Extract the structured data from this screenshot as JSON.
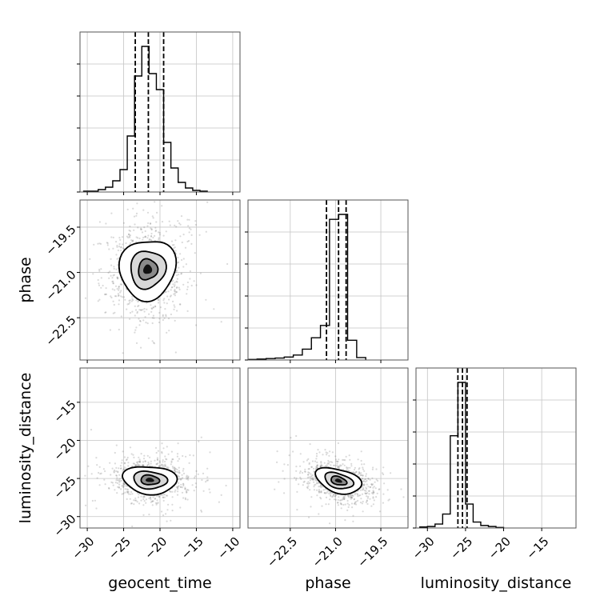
{
  "chart_data": {
    "type": "corner",
    "parameters": [
      "geocent_time",
      "phase",
      "luminosity_distance"
    ],
    "axis_labels": {
      "x": [
        "geocent_time",
        "phase",
        "luminosity_distance"
      ],
      "y": [
        "phase",
        "luminosity_distance"
      ]
    },
    "ranges": {
      "geocent_time": [
        -31,
        -9
      ],
      "phase": [
        -23.9,
        -18.6
      ],
      "luminosity_distance": [
        -31.5,
        -10.5
      ]
    },
    "ticks": {
      "geocent_time": [
        -30,
        -25,
        -20,
        -15,
        -10
      ],
      "phase": [
        -22.5,
        -21.0,
        -19.5
      ],
      "luminosity_distance": [
        -30,
        -25,
        -20,
        -15
      ]
    },
    "tick_labels": {
      "geocent_time": [
        "−30",
        "−25",
        "−20",
        "−15",
        "−10"
      ],
      "phase": [
        "−22.5",
        "−21.0",
        "−19.5"
      ],
      "luminosity_distance": [
        "−30",
        "−25",
        "−20",
        "−15"
      ]
    },
    "grid": true,
    "quantiles": {
      "geocent_time": [
        -23.4,
        -21.6,
        -19.5
      ],
      "phase": [
        -21.3,
        -20.9,
        -20.65
      ],
      "luminosity_distance": [
        -26.0,
        -25.4,
        -24.8
      ]
    },
    "histograms": {
      "geocent_time": {
        "edges": [
          -30.5,
          -29.5,
          -28.5,
          -27.5,
          -26.5,
          -25.5,
          -24.5,
          -23.5,
          -22.5,
          -21.5,
          -20.5,
          -19.5,
          -18.5,
          -17.5,
          -16.5,
          -15.5,
          -14.5,
          -13.5
        ],
        "counts": [
          1,
          1,
          3,
          6,
          14,
          28,
          70,
          145,
          182,
          148,
          128,
          62,
          30,
          12,
          5,
          2,
          1
        ]
      },
      "phase": {
        "edges": [
          -23.9,
          -23.6,
          -23.3,
          -23.0,
          -22.7,
          -22.4,
          -22.1,
          -21.8,
          -21.5,
          -21.2,
          -20.9,
          -20.6,
          -20.3,
          -20.0
        ],
        "counts": [
          1,
          2,
          3,
          4,
          6,
          10,
          22,
          45,
          70,
          285,
          295,
          40,
          5
        ]
      },
      "luminosity_distance": {
        "edges": [
          -31.0,
          -30.0,
          -29.0,
          -28.0,
          -27.0,
          -26.0,
          -25.0,
          -24.0,
          -23.0,
          -22.0,
          -21.0,
          -20.0
        ],
        "counts": [
          2,
          3,
          8,
          28,
          185,
          292,
          48,
          12,
          5,
          3,
          1
        ]
      }
    },
    "joint_2d": [
      {
        "x": "geocent_time",
        "y": "phase",
        "center": [
          -21.7,
          -20.9
        ],
        "spread": [
          2.3,
          0.65
        ],
        "rho": 0.05
      },
      {
        "x": "geocent_time",
        "y": "luminosity_distance",
        "center": [
          -21.4,
          -25.2
        ],
        "spread": [
          2.2,
          1.2
        ],
        "rho": -0.1
      },
      {
        "x": "phase",
        "y": "luminosity_distance",
        "center": [
          -20.9,
          -25.3
        ],
        "spread": [
          0.45,
          1.1
        ],
        "rho": -0.35
      }
    ]
  }
}
